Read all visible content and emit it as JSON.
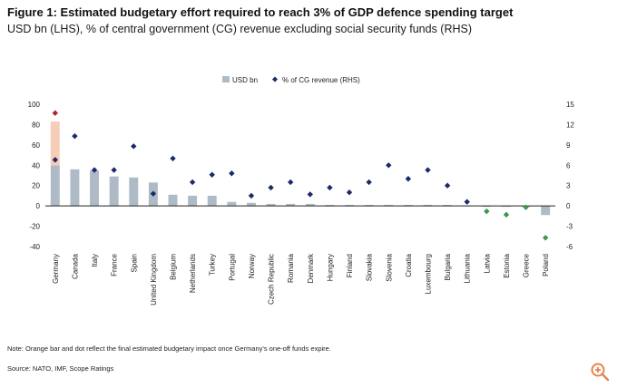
{
  "chart_data": {
    "type": "bar",
    "title": "Figure 1: Estimated budgetary effort required to reach 3% of GDP defence spending target",
    "subtitle": "USD bn (LHS), % of central government (CG) revenue excluding social security funds (RHS)",
    "categories": [
      "Germany",
      "Canada",
      "Italy",
      "France",
      "Spain",
      "United Kingdom",
      "Belgium",
      "Netherlands",
      "Turkey",
      "Portugal",
      "Norway",
      "Czech Republic",
      "Romania",
      "Denmark",
      "Hungary",
      "Finland",
      "Slovakia",
      "Slovenia",
      "Croatia",
      "Luxembourg",
      "Bulgaria",
      "Lithuania",
      "Latvia",
      "Estonia",
      "Greece",
      "Poland"
    ],
    "series": [
      {
        "name": "USD bn",
        "axis": "left",
        "type": "bar",
        "color": "#aebbc6",
        "values": [
          40,
          36,
          35,
          29,
          28,
          23,
          11,
          10,
          10,
          4,
          3,
          2,
          2,
          2,
          1,
          1,
          1,
          1,
          1,
          1,
          1,
          0.5,
          -0.5,
          -0.5,
          -1,
          -9
        ]
      },
      {
        "name": "% of CG revenue (RHS)",
        "axis": "right",
        "type": "scatter",
        "color": "#1b2a6b",
        "values": [
          6.8,
          10.3,
          5.3,
          5.3,
          8.8,
          1.8,
          7.0,
          3.5,
          4.6,
          4.8,
          1.5,
          2.7,
          3.5,
          1.7,
          2.7,
          2.0,
          3.5,
          6.0,
          4.0,
          5.3,
          3.0,
          0.6,
          -0.8,
          -1.3,
          -0.2,
          -4.7
        ],
        "special_colors": {
          "Latvia": "#3a9a4c",
          "Estonia": "#3a9a4c",
          "Greece": "#3a9a4c",
          "Poland": "#3a9a4c"
        }
      },
      {
        "name": "Germany final (after one-off funds expire)",
        "axis": "both",
        "type": "highlight",
        "color": "#e0442a",
        "bar_from": 40,
        "bar_to": 83,
        "bar_color": "#f8cdb8",
        "dot": 13.7
      }
    ],
    "ylim_left": [
      -40,
      100
    ],
    "ylim_right": [
      -6,
      15
    ],
    "yticks_left": [
      "100",
      "80",
      "60",
      "40",
      "20",
      "0",
      "-20",
      "-40"
    ],
    "yticks_right": [
      "15",
      "12",
      "9",
      "6",
      "3",
      "0",
      "-3",
      "-6"
    ],
    "legend": [
      "USD bn",
      "% of CG revenue (RHS)"
    ],
    "legend_position": "top-center"
  },
  "note": "Note: Orange bar and dot reflect the final estimated budgetary impact once Germany's one-off funds expire.",
  "source": "Source: NATO, IMF, Scope Ratings",
  "zoom_icon": "zoom-in-icon"
}
